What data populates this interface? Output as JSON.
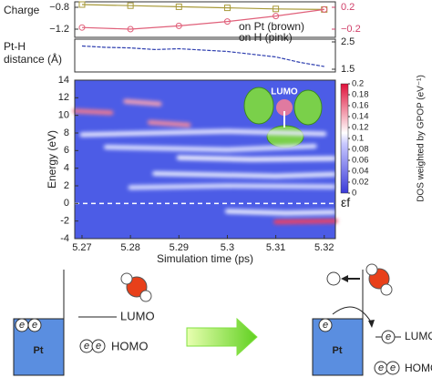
{
  "chart_data": [
    {
      "type": "line",
      "title": "Charge",
      "xlim": [
        5.2685,
        5.3223
      ],
      "x": [
        5.27,
        5.28,
        5.29,
        5.3,
        5.31,
        5.32
      ],
      "ylim": [
        -1.35,
        -0.7
      ],
      "yticks": [
        {
          "value": -0.8,
          "label": "−0.8"
        },
        {
          "value": -1.2,
          "label": "−1.2"
        }
      ],
      "y2lim": [
        -0.35,
        0.3
      ],
      "y2ticks": [
        0.2,
        {
          "value": -0.2,
          "label": "−0.2"
        }
      ],
      "y2color": "#d0406a",
      "series": [
        {
          "name": "on Pt (brown)",
          "color": "#a89a3a",
          "marker": "square",
          "values": [
            -0.75,
            -0.77,
            -0.79,
            -0.81,
            -0.83,
            -0.84
          ]
        },
        {
          "name": "on H (pink)",
          "color": "#e0607a",
          "marker": "circle",
          "axis": "y2",
          "values": [
            -0.17,
            -0.2,
            -0.14,
            -0.06,
            0.04,
            0.16
          ]
        }
      ]
    },
    {
      "type": "line",
      "title": "Pt-H distance (Å)",
      "xlim": [
        5.2685,
        5.3223
      ],
      "x": [
        5.27,
        5.275,
        5.28,
        5.285,
        5.29,
        5.295,
        5.3,
        5.305,
        5.31,
        5.315,
        5.32
      ],
      "ylim": [
        1.4,
        2.6
      ],
      "yticks": [
        2.5,
        1.5
      ],
      "ytick_side": "right",
      "series": [
        {
          "color": "#3040b0",
          "values": [
            2.35,
            2.3,
            2.28,
            2.22,
            2.25,
            2.2,
            2.15,
            2.05,
            1.95,
            1.75,
            1.6
          ]
        }
      ]
    },
    {
      "type": "heatmap",
      "xlabel": "Simulation time (ps)",
      "ylabel": "Energy (eV)",
      "xlim": [
        5.2685,
        5.3223
      ],
      "xticks": [
        5.27,
        5.28,
        5.29,
        5.3,
        5.31,
        5.32
      ],
      "ylim": [
        -4,
        14
      ],
      "yticks": [
        -4,
        -2,
        0,
        2,
        4,
        6,
        8,
        10,
        12,
        14
      ],
      "fermi_level": 0,
      "fermi_label": "εf",
      "inset_label": "LUMO",
      "colorbar": {
        "label": "DOS weighted by GPOP (eV⁻¹)",
        "lim": [
          0,
          0.2
        ],
        "ticks": [
          0,
          0.02,
          0.04,
          0.06,
          0.08,
          0.1,
          0.12,
          0.14,
          0.16,
          0.18,
          0.2
        ]
      },
      "streaks": [
        {
          "color": "#f07a90",
          "x": [
            5.2685,
            5.276
          ],
          "values": [
            10.5,
            10.3
          ]
        },
        {
          "color": "#f4a0b4",
          "x": [
            5.279,
            5.286
          ],
          "values": [
            11.6,
            11.3
          ]
        },
        {
          "color": "#f08aa0",
          "x": [
            5.284,
            5.292
          ],
          "values": [
            9.2,
            8.9
          ]
        },
        {
          "color": "#e8e8ff",
          "x": [
            5.27,
            5.3,
            5.32
          ],
          "values": [
            7.8,
            8.2,
            7.9
          ]
        },
        {
          "color": "#e0e4ff",
          "x": [
            5.275,
            5.3,
            5.318
          ],
          "values": [
            6.4,
            6.1,
            6.5
          ]
        },
        {
          "color": "#f4f4ff",
          "x": [
            5.29,
            5.305,
            5.322
          ],
          "values": [
            5.2,
            5.0,
            5.1
          ]
        },
        {
          "color": "#e8ecff",
          "x": [
            5.285,
            5.31,
            5.322
          ],
          "values": [
            3.4,
            3.1,
            3.3
          ]
        },
        {
          "color": "#dce0ff",
          "x": [
            5.28,
            5.3,
            5.322
          ],
          "values": [
            1.8,
            2.0,
            1.9
          ]
        },
        {
          "color": "#eef0ff",
          "x": [
            5.3,
            5.312,
            5.322
          ],
          "values": [
            -0.9,
            -1.1,
            -1.0
          ]
        },
        {
          "color": "#f04060",
          "x": [
            5.31,
            5.3223
          ],
          "values": [
            -2.1,
            -2.0
          ]
        }
      ]
    },
    {
      "type": "diagram"
    }
  ],
  "diagram": {
    "metal": "Pt",
    "lumo": "LUMO",
    "homo": "HOMO",
    "electron": "e"
  }
}
